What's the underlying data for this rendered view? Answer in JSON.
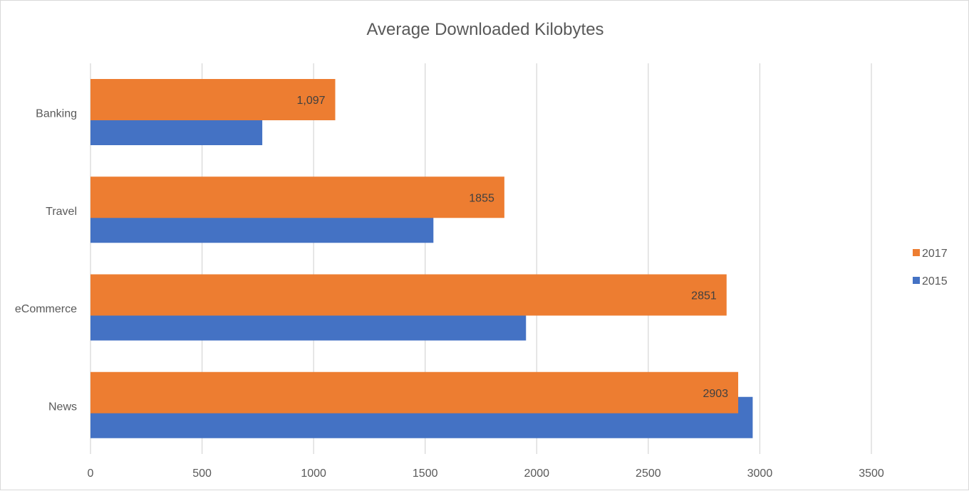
{
  "chart_data": {
    "type": "bar",
    "orientation": "horizontal",
    "title": "Average Downloaded Kilobytes",
    "categories": [
      "Banking",
      "Travel",
      "eCommerce",
      "News"
    ],
    "xlim": [
      0,
      3500
    ],
    "xticks": [
      0,
      500,
      1000,
      1500,
      2000,
      2500,
      3000,
      3500
    ],
    "grid": true,
    "legend_position": "right",
    "series": [
      {
        "name": "2017",
        "color": "#ed7d31",
        "values": [
          1097,
          1855,
          2851,
          2903
        ],
        "data_labels": [
          "1,097",
          "1855",
          "2851",
          "2903"
        ]
      },
      {
        "name": "2015",
        "color": "#4472c4",
        "values": [
          770,
          1537,
          1952,
          2968
        ],
        "data_labels": []
      }
    ]
  }
}
